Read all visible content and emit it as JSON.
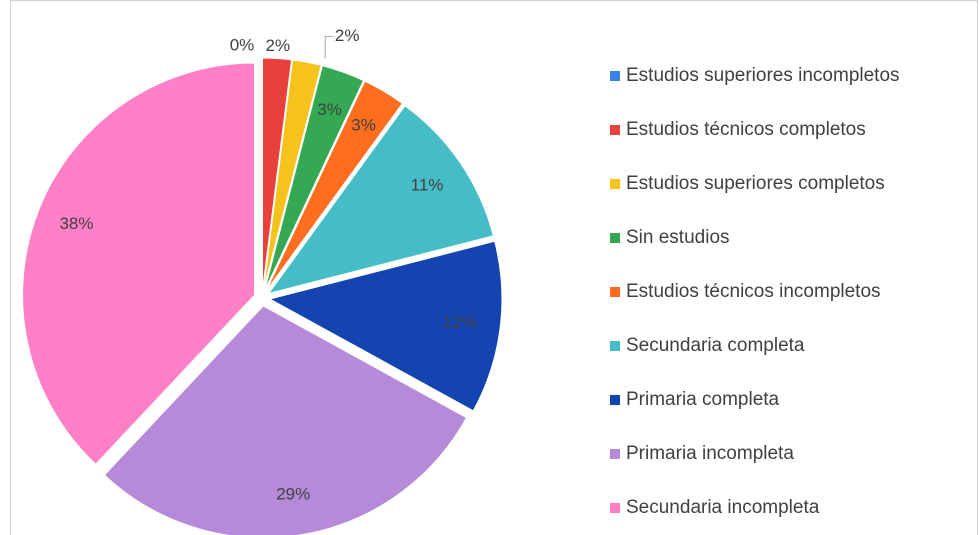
{
  "chart_data": {
    "type": "pie",
    "categories": [
      "Estudios superiores incompletos",
      "Estudios técnicos completos",
      "Estudios superiores completos",
      "Sin estudios",
      "Estudios técnicos incompletos",
      "Secundaria completa",
      "Primaria completa",
      "Primaria incompleta",
      "Secundaria incompleta"
    ],
    "values": [
      0,
      2,
      2,
      3,
      3,
      11,
      12,
      29,
      38
    ],
    "value_labels": [
      "0%",
      "2%",
      "2%",
      "3%",
      "3%",
      "11%",
      "12%",
      "29%",
      "38%"
    ],
    "colors": [
      "#3b82e6",
      "#e8403a",
      "#f6c21c",
      "#34a853",
      "#ff6d1f",
      "#46bdc6",
      "#1444b0",
      "#b68ad9",
      "#ff80c6"
    ],
    "legend": "right"
  }
}
